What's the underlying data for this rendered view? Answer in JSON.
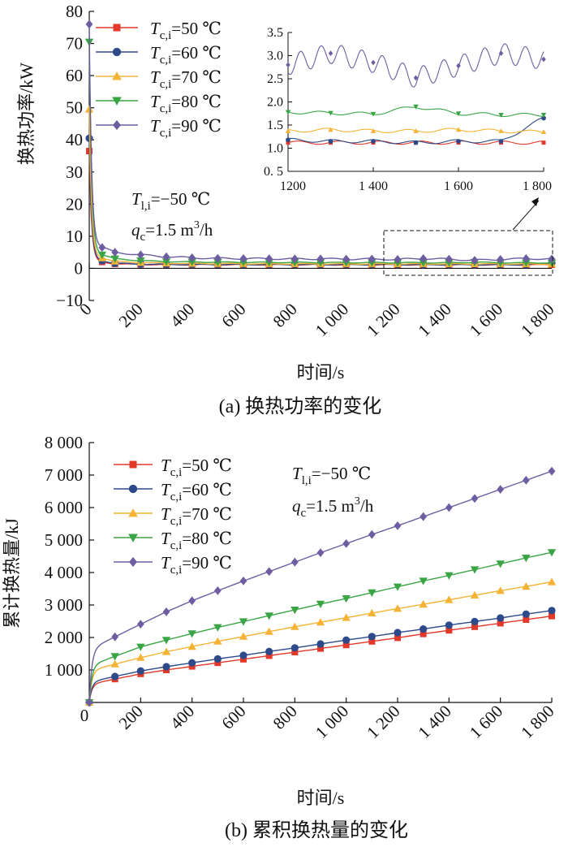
{
  "chart_data": [
    {
      "type": "line",
      "caption": "(a)  换热功率的变化",
      "xlabel": "时间/s",
      "ylabel": "换热功率/kW",
      "xlim": [
        0,
        1800
      ],
      "ylim": [
        -10,
        80
      ],
      "xticks": [
        0,
        200,
        400,
        600,
        800,
        1000,
        1200,
        1400,
        1600,
        1800
      ],
      "xtick_labels": [
        "0",
        "200",
        "400",
        "600",
        "800",
        "1 000",
        "1 200",
        "1 400",
        "1 600",
        "1 800"
      ],
      "yticks": [
        -10,
        0,
        10,
        20,
        30,
        40,
        50,
        60,
        70,
        80
      ],
      "ytick_labels": [
        "−10",
        "0",
        "10",
        "20",
        "30",
        "40",
        "50",
        "60",
        "70",
        "80"
      ],
      "annotation": {
        "t_symbol": "T",
        "t_sub": "l,i",
        "t_value": "=−50 ℃",
        "q_symbol": "q",
        "q_sub": "c",
        "q_value": "=1.5 m",
        "q_sup": "3",
        "q_unit": "/h"
      },
      "legend_position": "top-left",
      "x": [
        0,
        50,
        100,
        200,
        300,
        400,
        500,
        600,
        700,
        800,
        900,
        1000,
        1100,
        1200,
        1300,
        1400,
        1500,
        1600,
        1700,
        1800
      ],
      "series": [
        {
          "symbol": "T",
          "sub": "c,i",
          "value": "=50 ℃",
          "color": "#e2392b",
          "marker": "square",
          "values": [
            36.5,
            2.0,
            1.4,
            1.2,
            1.15,
            1.15,
            1.15,
            1.15,
            1.12,
            1.12,
            1.12,
            1.12,
            1.12,
            1.12,
            1.12,
            1.12,
            1.12,
            1.12,
            1.12,
            1.12
          ]
        },
        {
          "symbol": "T",
          "sub": "c,i",
          "value": "=60 ℃",
          "color": "#2d4a8a",
          "marker": "circle",
          "values": [
            40.5,
            2.4,
            1.6,
            1.3,
            1.25,
            1.2,
            1.2,
            1.2,
            1.2,
            1.18,
            1.18,
            1.18,
            1.18,
            1.18,
            1.15,
            1.15,
            1.12,
            1.15,
            1.15,
            1.65
          ]
        },
        {
          "symbol": "T",
          "sub": "c,i",
          "value": "=70 ℃",
          "color": "#f5b335",
          "marker": "triangle-up",
          "values": [
            49.5,
            3.2,
            2.2,
            1.8,
            1.6,
            1.5,
            1.45,
            1.45,
            1.4,
            1.4,
            1.4,
            1.4,
            1.4,
            1.37,
            1.4,
            1.37,
            1.37,
            1.4,
            1.37,
            1.35
          ]
        },
        {
          "symbol": "T",
          "sub": "c,i",
          "value": "=80 ℃",
          "color": "#3aa544",
          "marker": "triangle-down",
          "values": [
            70.5,
            4.2,
            3.0,
            2.4,
            2.1,
            2.0,
            1.9,
            1.9,
            1.85,
            1.85,
            1.8,
            1.8,
            1.8,
            1.78,
            1.76,
            1.74,
            1.9,
            1.75,
            1.72,
            1.72
          ]
        },
        {
          "symbol": "T",
          "sub": "c,i",
          "value": "=90 ℃",
          "color": "#6e5da1",
          "marker": "diamond",
          "values": [
            76.0,
            6.5,
            5.0,
            4.2,
            3.6,
            3.3,
            3.1,
            3.05,
            3.0,
            2.95,
            2.95,
            2.9,
            2.9,
            2.8,
            3.05,
            2.85,
            2.52,
            2.78,
            3.05,
            2.92
          ]
        }
      ],
      "inset": {
        "xlim": [
          1200,
          1800
        ],
        "ylim": [
          0.5,
          3.5
        ],
        "xticks": [
          1200,
          1400,
          1600,
          1800
        ],
        "xtick_labels": [
          "1200",
          "1 400",
          "1 600",
          "1 800"
        ],
        "yticks": [
          0.5,
          1.0,
          1.5,
          2.0,
          2.5,
          3.0,
          3.5
        ],
        "ytick_labels": [
          "0. 5",
          "1.0",
          "1.5",
          "2.0",
          "2.5",
          "3.0",
          "3.5"
        ]
      }
    },
    {
      "type": "line",
      "caption": "(b)  累积换热量的变化",
      "xlabel": "时间/s",
      "ylabel": "累计换热量/kJ",
      "xlim": [
        0,
        1800
      ],
      "ylim": [
        0,
        8000
      ],
      "xticks": [
        0,
        200,
        400,
        600,
        800,
        1000,
        1200,
        1400,
        1600,
        1800
      ],
      "xtick_labels": [
        "0",
        "200",
        "400",
        "600",
        "800",
        "1 000",
        "1 200",
        "1 400",
        "1 600",
        "1 800"
      ],
      "yticks": [
        1000,
        2000,
        3000,
        4000,
        5000,
        6000,
        7000,
        8000
      ],
      "ytick_labels": [
        "1 000",
        "2 000",
        "3 000",
        "4 000",
        "5 000",
        "6 000",
        "7 000",
        "8 000"
      ],
      "annotation": {
        "t_symbol": "T",
        "t_sub": "l,i",
        "t_value": "=−50 ℃",
        "q_symbol": "q",
        "q_sub": "c",
        "q_value": "=1.5 m",
        "q_sup": "3",
        "q_unit": "/h"
      },
      "legend_position": "top-left",
      "x": [
        0,
        100,
        200,
        300,
        400,
        500,
        600,
        700,
        800,
        900,
        1000,
        1100,
        1200,
        1300,
        1400,
        1500,
        1600,
        1700,
        1800
      ],
      "series": [
        {
          "symbol": "T",
          "sub": "c,i",
          "value": "=50 ℃",
          "color": "#e2392b",
          "marker": "square",
          "values": [
            0,
            720,
            880,
            1000,
            1110,
            1220,
            1330,
            1440,
            1550,
            1660,
            1770,
            1880,
            1990,
            2110,
            2220,
            2330,
            2440,
            2550,
            2660
          ]
        },
        {
          "symbol": "T",
          "sub": "c,i",
          "value": "=60 ℃",
          "color": "#2d4a8a",
          "marker": "circle",
          "values": [
            0,
            800,
            970,
            1100,
            1220,
            1340,
            1450,
            1570,
            1680,
            1800,
            1920,
            2030,
            2150,
            2260,
            2380,
            2490,
            2600,
            2720,
            2830
          ]
        },
        {
          "symbol": "T",
          "sub": "c,i",
          "value": "=70 ℃",
          "color": "#f5b335",
          "marker": "triangle-up",
          "values": [
            0,
            1180,
            1380,
            1560,
            1720,
            1880,
            2030,
            2180,
            2330,
            2470,
            2610,
            2750,
            2890,
            3020,
            3160,
            3300,
            3440,
            3570,
            3710
          ]
        },
        {
          "symbol": "T",
          "sub": "c,i",
          "value": "=80 ℃",
          "color": "#3aa544",
          "marker": "triangle-down",
          "values": [
            0,
            1420,
            1710,
            1920,
            2120,
            2310,
            2490,
            2670,
            2850,
            3030,
            3200,
            3380,
            3560,
            3740,
            3910,
            4090,
            4270,
            4450,
            4620
          ]
        },
        {
          "symbol": "T",
          "sub": "c,i",
          "value": "=90 ℃",
          "color": "#6e5da1",
          "marker": "diamond",
          "values": [
            0,
            2020,
            2410,
            2790,
            3130,
            3440,
            3740,
            4030,
            4320,
            4610,
            4890,
            5170,
            5440,
            5720,
            6000,
            6280,
            6560,
            6840,
            7120
          ]
        }
      ]
    }
  ]
}
